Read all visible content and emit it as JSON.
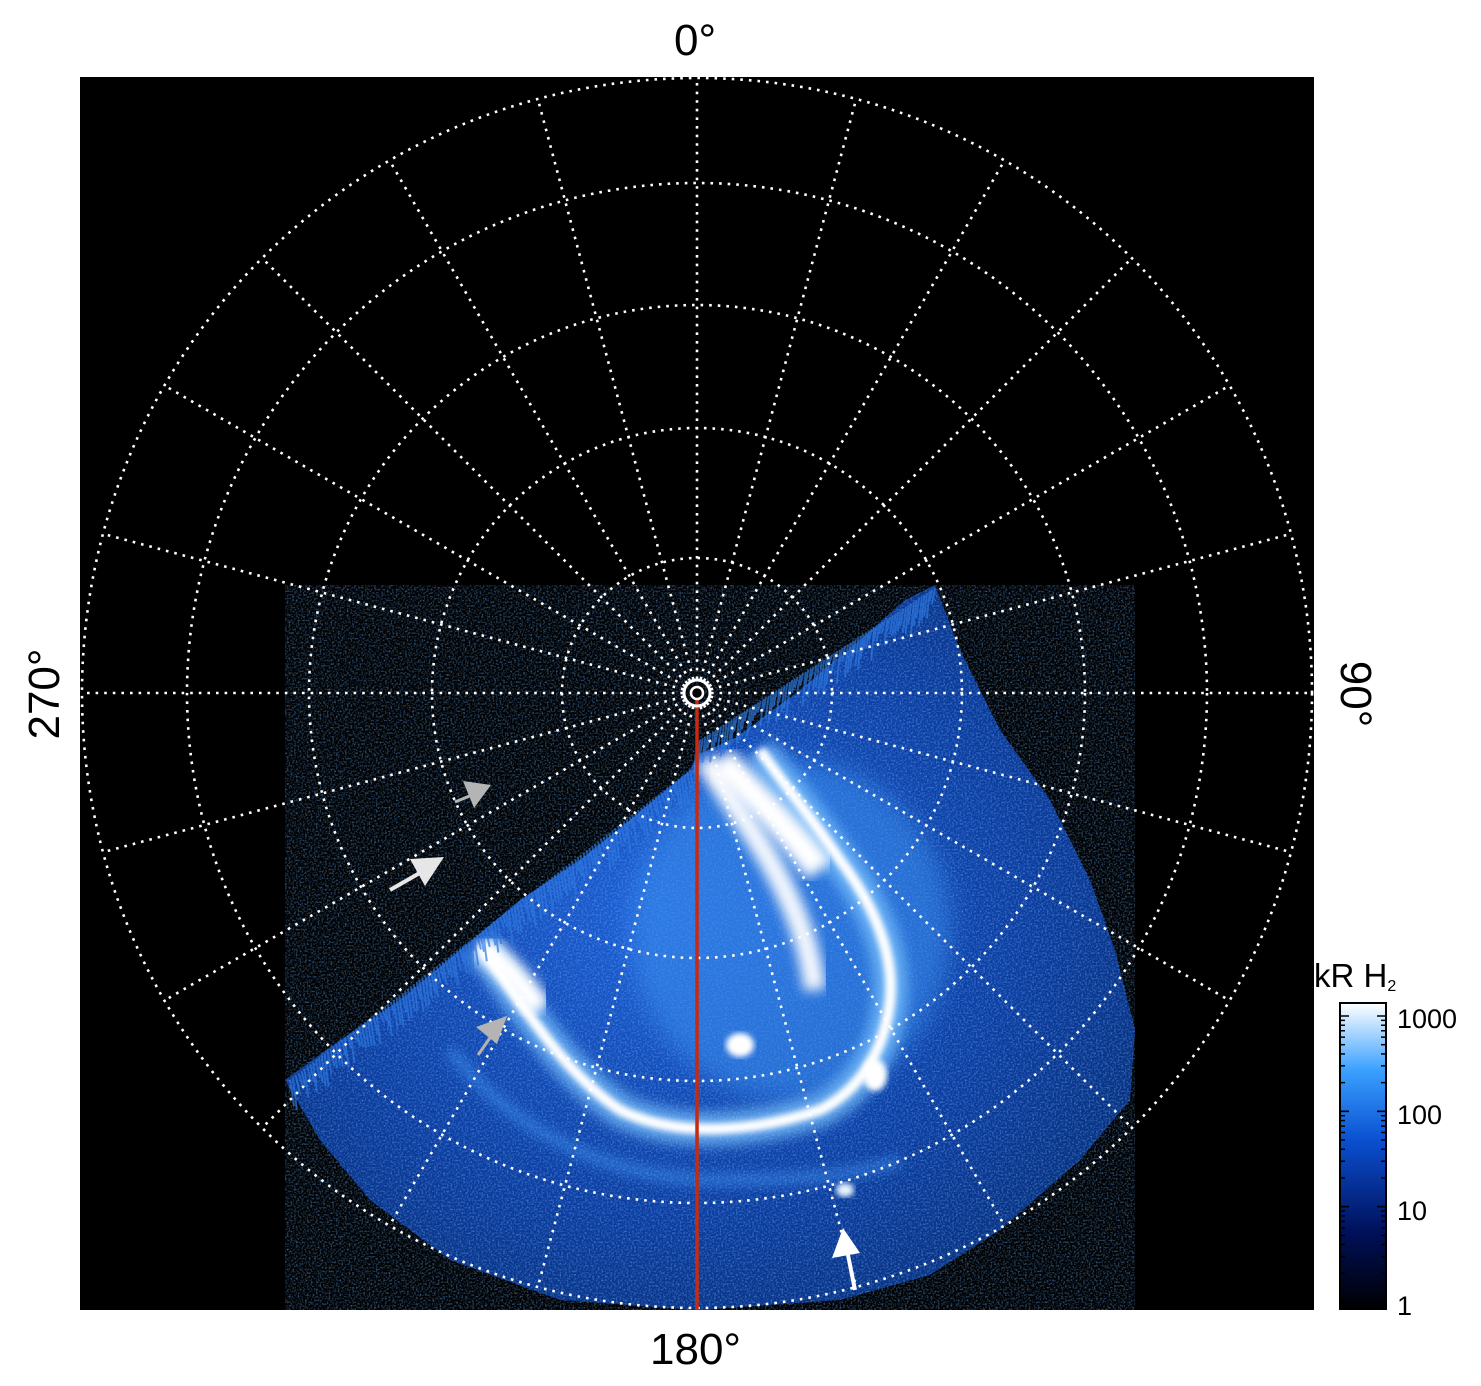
{
  "axis_labels": {
    "top": "0°",
    "bottom": "180°",
    "left": "270°",
    "right": "90°"
  },
  "colorbar": {
    "title_main": "kR H",
    "title_sub": "2",
    "ticks": [
      "1000",
      "100",
      "10",
      "1"
    ],
    "scale": "log",
    "colors": [
      "#000000",
      "#00105a",
      "#0a4fd0",
      "#3aa0ff",
      "#ffffff"
    ]
  },
  "colors": {
    "background": "#000000",
    "grid": "#ffffff",
    "meridian": "#c62a10",
    "aurora_dim": "#0a3a9a",
    "aurora_mid": "#2a7dea",
    "aurora_bright": "#ffffff",
    "arrow_white": "#ffffff",
    "arrow_gray": "#b4b4b4"
  }
}
